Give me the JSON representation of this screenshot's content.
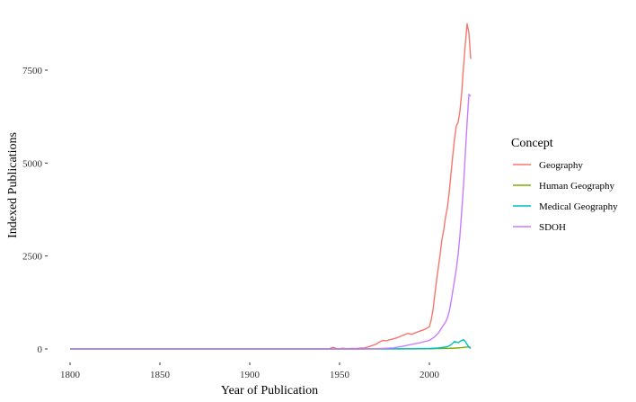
{
  "chart_data": {
    "type": "line",
    "xlabel": "Year of Publication",
    "ylabel": "Indexed Publications",
    "xlim": [
      1800,
      2023
    ],
    "ylim": [
      0,
      8800
    ],
    "x_ticks": [
      1800,
      1850,
      1900,
      1950,
      2000
    ],
    "y_ticks": [
      0,
      2500,
      5000,
      7500
    ],
    "x_tick_labels": [
      "1800",
      "1850",
      "1900",
      "1950",
      "2000"
    ],
    "y_tick_labels": [
      "0",
      "2500",
      "5000",
      "7500"
    ],
    "grid": false,
    "legend": {
      "title": "Concept",
      "position": "right"
    },
    "series": [
      {
        "name": "Geography",
        "color": "#F8766D",
        "points": [
          [
            1800,
            0
          ],
          [
            1850,
            0
          ],
          [
            1900,
            0
          ],
          [
            1944,
            2
          ],
          [
            1945,
            20
          ],
          [
            1946,
            40
          ],
          [
            1947,
            35
          ],
          [
            1948,
            15
          ],
          [
            1950,
            10
          ],
          [
            1952,
            20
          ],
          [
            1954,
            8
          ],
          [
            1956,
            15
          ],
          [
            1958,
            12
          ],
          [
            1960,
            18
          ],
          [
            1962,
            25
          ],
          [
            1964,
            30
          ],
          [
            1966,
            55
          ],
          [
            1968,
            90
          ],
          [
            1970,
            120
          ],
          [
            1972,
            180
          ],
          [
            1974,
            230
          ],
          [
            1976,
            220
          ],
          [
            1978,
            250
          ],
          [
            1980,
            270
          ],
          [
            1982,
            300
          ],
          [
            1984,
            340
          ],
          [
            1986,
            380
          ],
          [
            1988,
            420
          ],
          [
            1990,
            390
          ],
          [
            1992,
            430
          ],
          [
            1994,
            470
          ],
          [
            1996,
            500
          ],
          [
            1998,
            540
          ],
          [
            2000,
            600
          ],
          [
            2001,
            780
          ],
          [
            2002,
            1050
          ],
          [
            2003,
            1450
          ],
          [
            2004,
            1850
          ],
          [
            2005,
            2200
          ],
          [
            2006,
            2550
          ],
          [
            2007,
            2950
          ],
          [
            2008,
            3200
          ],
          [
            2009,
            3550
          ],
          [
            2010,
            3800
          ],
          [
            2011,
            4200
          ],
          [
            2012,
            4700
          ],
          [
            2013,
            5200
          ],
          [
            2014,
            5650
          ],
          [
            2015,
            6000
          ],
          [
            2016,
            6100
          ],
          [
            2017,
            6400
          ],
          [
            2018,
            6900
          ],
          [
            2019,
            7600
          ],
          [
            2020,
            8200
          ],
          [
            2021,
            8750
          ],
          [
            2022,
            8500
          ],
          [
            2023,
            7800
          ]
        ]
      },
      {
        "name": "Human Geography",
        "color": "#7CAE00",
        "points": [
          [
            1800,
            0
          ],
          [
            1900,
            0
          ],
          [
            1950,
            0
          ],
          [
            1990,
            3
          ],
          [
            2000,
            6
          ],
          [
            2005,
            10
          ],
          [
            2010,
            15
          ],
          [
            2015,
            25
          ],
          [
            2018,
            35
          ],
          [
            2020,
            45
          ],
          [
            2022,
            55
          ],
          [
            2023,
            35
          ]
        ]
      },
      {
        "name": "Medical Geography",
        "color": "#00BFC4",
        "points": [
          [
            1800,
            0
          ],
          [
            1900,
            0
          ],
          [
            1950,
            0
          ],
          [
            1990,
            5
          ],
          [
            2000,
            12
          ],
          [
            2005,
            25
          ],
          [
            2010,
            60
          ],
          [
            2012,
            110
          ],
          [
            2014,
            200
          ],
          [
            2016,
            170
          ],
          [
            2018,
            230
          ],
          [
            2019,
            250
          ],
          [
            2020,
            200
          ],
          [
            2021,
            120
          ],
          [
            2022,
            40
          ],
          [
            2023,
            15
          ]
        ]
      },
      {
        "name": "SDOH",
        "color": "#C77CFF",
        "points": [
          [
            1800,
            0
          ],
          [
            1900,
            0
          ],
          [
            1960,
            0
          ],
          [
            1970,
            5
          ],
          [
            1980,
            30
          ],
          [
            1985,
            70
          ],
          [
            1990,
            120
          ],
          [
            1995,
            170
          ],
          [
            2000,
            230
          ],
          [
            2003,
            330
          ],
          [
            2005,
            430
          ],
          [
            2007,
            580
          ],
          [
            2009,
            720
          ],
          [
            2010,
            830
          ],
          [
            2011,
            1000
          ],
          [
            2012,
            1250
          ],
          [
            2013,
            1550
          ],
          [
            2014,
            1850
          ],
          [
            2015,
            2150
          ],
          [
            2016,
            2550
          ],
          [
            2017,
            3050
          ],
          [
            2018,
            3700
          ],
          [
            2019,
            4400
          ],
          [
            2020,
            5250
          ],
          [
            2021,
            6100
          ],
          [
            2022,
            6850
          ],
          [
            2023,
            6800
          ]
        ]
      }
    ]
  }
}
